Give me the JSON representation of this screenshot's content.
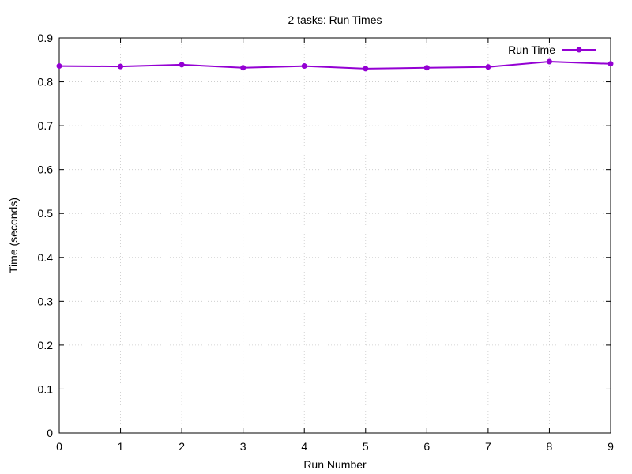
{
  "chart_data": {
    "type": "line",
    "title": "2 tasks: Run Times",
    "xlabel": "Run Number",
    "ylabel": "Time (seconds)",
    "xlim": [
      0,
      9
    ],
    "ylim": [
      0,
      0.9
    ],
    "xticks": [
      "0",
      "1",
      "2",
      "3",
      "4",
      "5",
      "6",
      "7",
      "8",
      "9"
    ],
    "yticks": [
      "0",
      "0.1",
      "0.2",
      "0.3",
      "0.4",
      "0.5",
      "0.6",
      "0.7",
      "0.8",
      "0.9"
    ],
    "grid": true,
    "legend_position": "top-right",
    "series": [
      {
        "name": "Run Time",
        "color": "#9400d3",
        "marker": "circle",
        "x": [
          0,
          1,
          2,
          3,
          4,
          5,
          6,
          7,
          8,
          9
        ],
        "y": [
          0.836,
          0.835,
          0.839,
          0.832,
          0.836,
          0.83,
          0.832,
          0.834,
          0.846,
          0.841
        ]
      }
    ]
  }
}
